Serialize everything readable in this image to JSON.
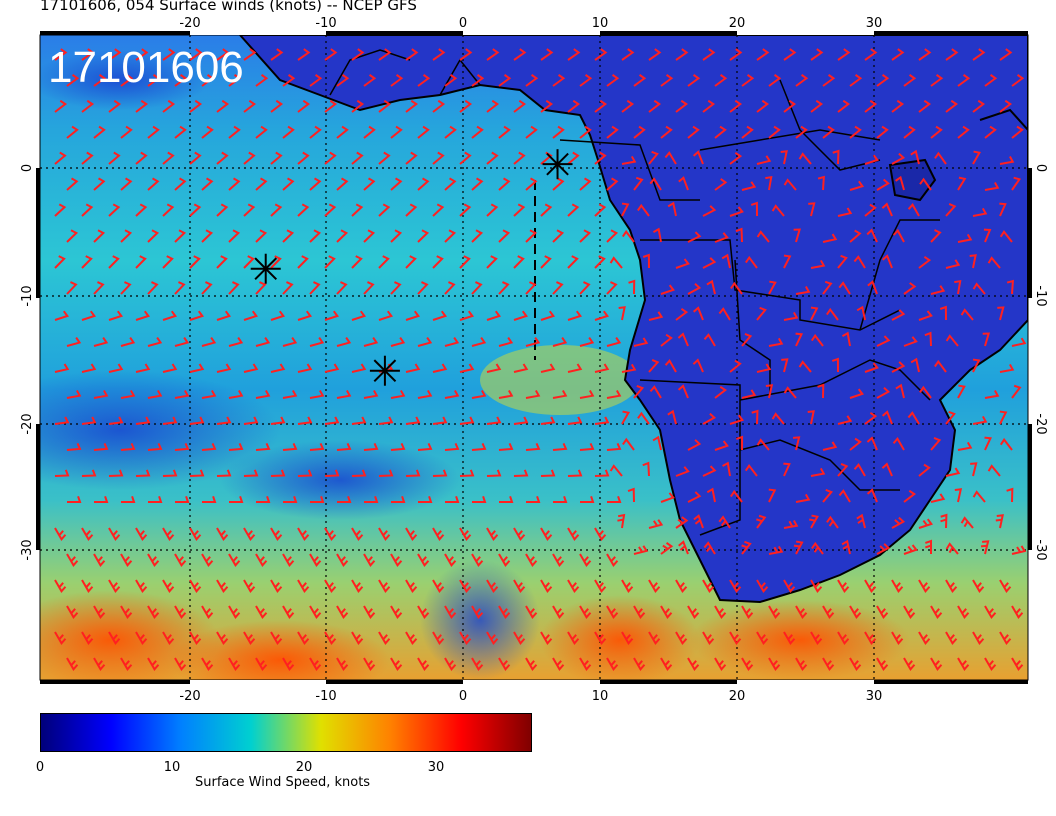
{
  "title": "17101606, 054 Surface winds (knots) -- NCEP GFS",
  "stamp": "17101606",
  "axes": {
    "lon_ticks": [
      "-20",
      "-10",
      "0",
      "10",
      "20",
      "30"
    ],
    "lat_ticks": [
      "0",
      "-10",
      "-20",
      "-30"
    ]
  },
  "colorbar": {
    "ticks": [
      "0",
      "10",
      "20",
      "30"
    ],
    "label": "Surface Wind Speed, knots",
    "colors": [
      "#00007a",
      "#0000ff",
      "#0080ff",
      "#00d0d0",
      "#e0e000",
      "#ff8000",
      "#ff0000",
      "#800000"
    ],
    "range": [
      0,
      37
    ]
  },
  "markers": [
    {
      "lon": 6.9,
      "lat": 0.3
    },
    {
      "lon": -14.4,
      "lat": -7.9
    },
    {
      "lon": -5.7,
      "lat": -15.9
    }
  ],
  "colors": {
    "barb": "#ff2020",
    "land": "#2030c8",
    "ocean": "#20a8e0"
  }
}
